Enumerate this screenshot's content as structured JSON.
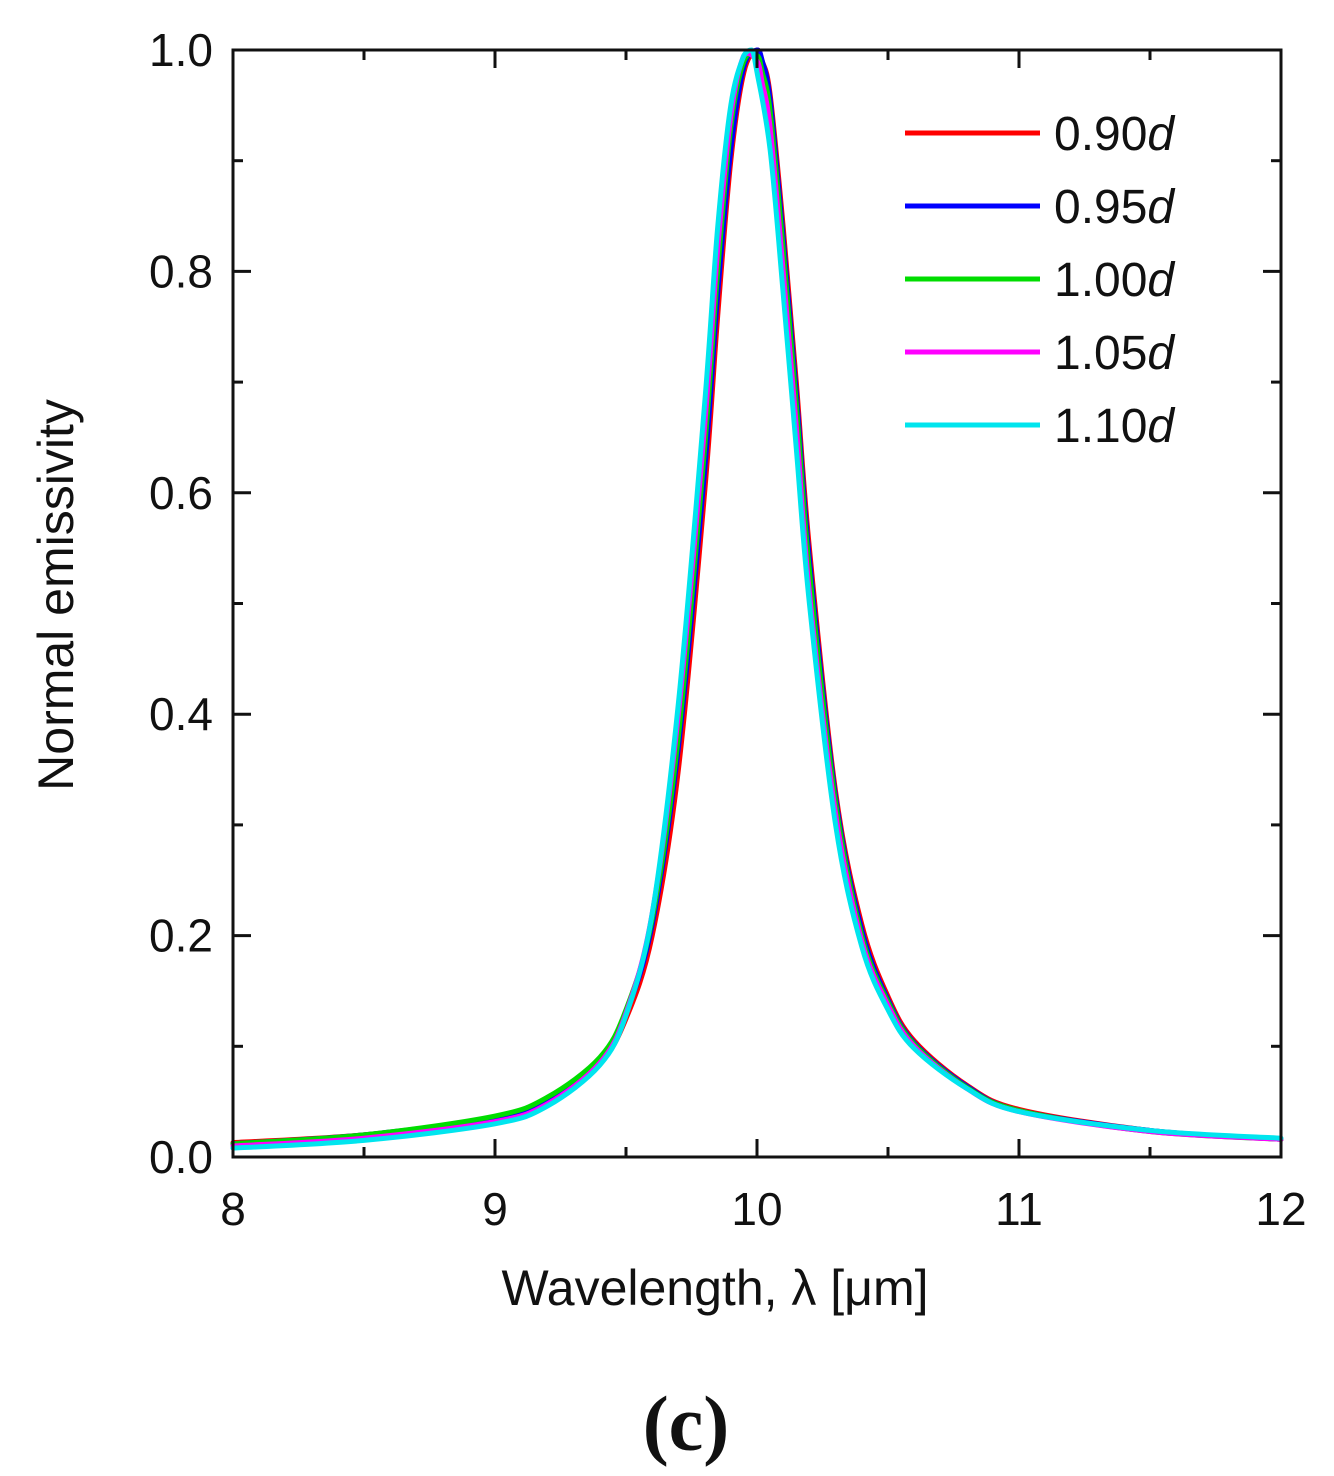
{
  "chart_data": {
    "type": "line",
    "xlabel": "Wavelength, λ [μm]",
    "ylabel": "Normal emissivity",
    "xlim": [
      8,
      12
    ],
    "ylim": [
      0,
      1.0
    ],
    "x_ticks": [
      "8",
      "9",
      "10",
      "11",
      "12"
    ],
    "y_ticks": [
      "0.0",
      "0.2",
      "0.4",
      "0.6",
      "0.8",
      "1.0"
    ],
    "grid": false,
    "legend_position": "top-right",
    "panel_label": "(c)",
    "series": [
      {
        "name": "0.90d",
        "color": "#ff0000",
        "x": [
          8.0,
          8.5,
          9.0,
          9.2,
          9.4,
          9.5,
          9.6,
          9.7,
          9.8,
          9.85,
          9.9,
          9.95,
          10.0,
          10.02,
          10.05,
          10.1,
          10.15,
          10.2,
          10.3,
          10.4,
          10.5,
          10.6,
          10.8,
          11.0,
          11.5,
          12.0
        ],
        "y": [
          0.013,
          0.02,
          0.035,
          0.05,
          0.085,
          0.125,
          0.2,
          0.35,
          0.6,
          0.76,
          0.9,
          0.98,
          1.0,
          0.99,
          0.96,
          0.84,
          0.7,
          0.55,
          0.33,
          0.21,
          0.145,
          0.105,
          0.065,
          0.043,
          0.024,
          0.016
        ]
      },
      {
        "name": "0.95d",
        "color": "#0000ff",
        "x": [
          8.0,
          8.5,
          9.0,
          9.2,
          9.4,
          9.5,
          9.6,
          9.7,
          9.8,
          9.85,
          9.9,
          9.95,
          10.0,
          10.02,
          10.05,
          10.1,
          10.15,
          10.2,
          10.3,
          10.4,
          10.5,
          10.6,
          10.8,
          11.0,
          11.5,
          12.0
        ],
        "y": [
          0.012,
          0.02,
          0.036,
          0.052,
          0.088,
          0.13,
          0.21,
          0.37,
          0.62,
          0.78,
          0.91,
          0.985,
          1.0,
          0.99,
          0.955,
          0.83,
          0.69,
          0.54,
          0.325,
          0.205,
          0.142,
          0.103,
          0.064,
          0.042,
          0.024,
          0.016
        ]
      },
      {
        "name": "1.00d",
        "color": "#00dd00",
        "x": [
          8.0,
          8.5,
          9.0,
          9.2,
          9.4,
          9.5,
          9.6,
          9.7,
          9.8,
          9.85,
          9.9,
          9.95,
          10.0,
          10.02,
          10.05,
          10.1,
          10.15,
          10.2,
          10.3,
          10.4,
          10.5,
          10.6,
          10.8,
          11.0,
          11.5,
          12.0
        ],
        "y": [
          0.012,
          0.02,
          0.037,
          0.054,
          0.09,
          0.133,
          0.215,
          0.38,
          0.64,
          0.8,
          0.93,
          0.99,
          0.995,
          0.98,
          0.945,
          0.82,
          0.68,
          0.53,
          0.32,
          0.2,
          0.14,
          0.102,
          0.063,
          0.042,
          0.023,
          0.016
        ]
      },
      {
        "name": "1.05d",
        "color": "#ff00ff",
        "x": [
          8.0,
          8.5,
          9.0,
          9.2,
          9.4,
          9.5,
          9.6,
          9.7,
          9.8,
          9.85,
          9.9,
          9.95,
          10.0,
          10.02,
          10.05,
          10.1,
          10.15,
          10.2,
          10.3,
          10.4,
          10.5,
          10.6,
          10.8,
          11.0,
          11.5,
          12.0
        ],
        "y": [
          0.01,
          0.017,
          0.032,
          0.048,
          0.085,
          0.13,
          0.22,
          0.4,
          0.66,
          0.82,
          0.94,
          0.995,
          0.99,
          0.97,
          0.93,
          0.8,
          0.66,
          0.51,
          0.31,
          0.195,
          0.137,
          0.1,
          0.062,
          0.041,
          0.023,
          0.016
        ]
      },
      {
        "name": "1.10d",
        "color": "#00e5ee",
        "x": [
          8.0,
          8.5,
          9.0,
          9.2,
          9.4,
          9.5,
          9.6,
          9.7,
          9.8,
          9.85,
          9.9,
          9.95,
          9.98,
          10.0,
          10.05,
          10.1,
          10.15,
          10.2,
          10.3,
          10.4,
          10.5,
          10.6,
          10.8,
          11.0,
          11.5,
          12.0
        ],
        "y": [
          0.008,
          0.015,
          0.03,
          0.046,
          0.083,
          0.128,
          0.22,
          0.41,
          0.68,
          0.84,
          0.95,
          0.995,
          1.0,
          0.98,
          0.91,
          0.78,
          0.64,
          0.5,
          0.3,
          0.19,
          0.133,
          0.098,
          0.062,
          0.041,
          0.024,
          0.017
        ]
      }
    ]
  }
}
